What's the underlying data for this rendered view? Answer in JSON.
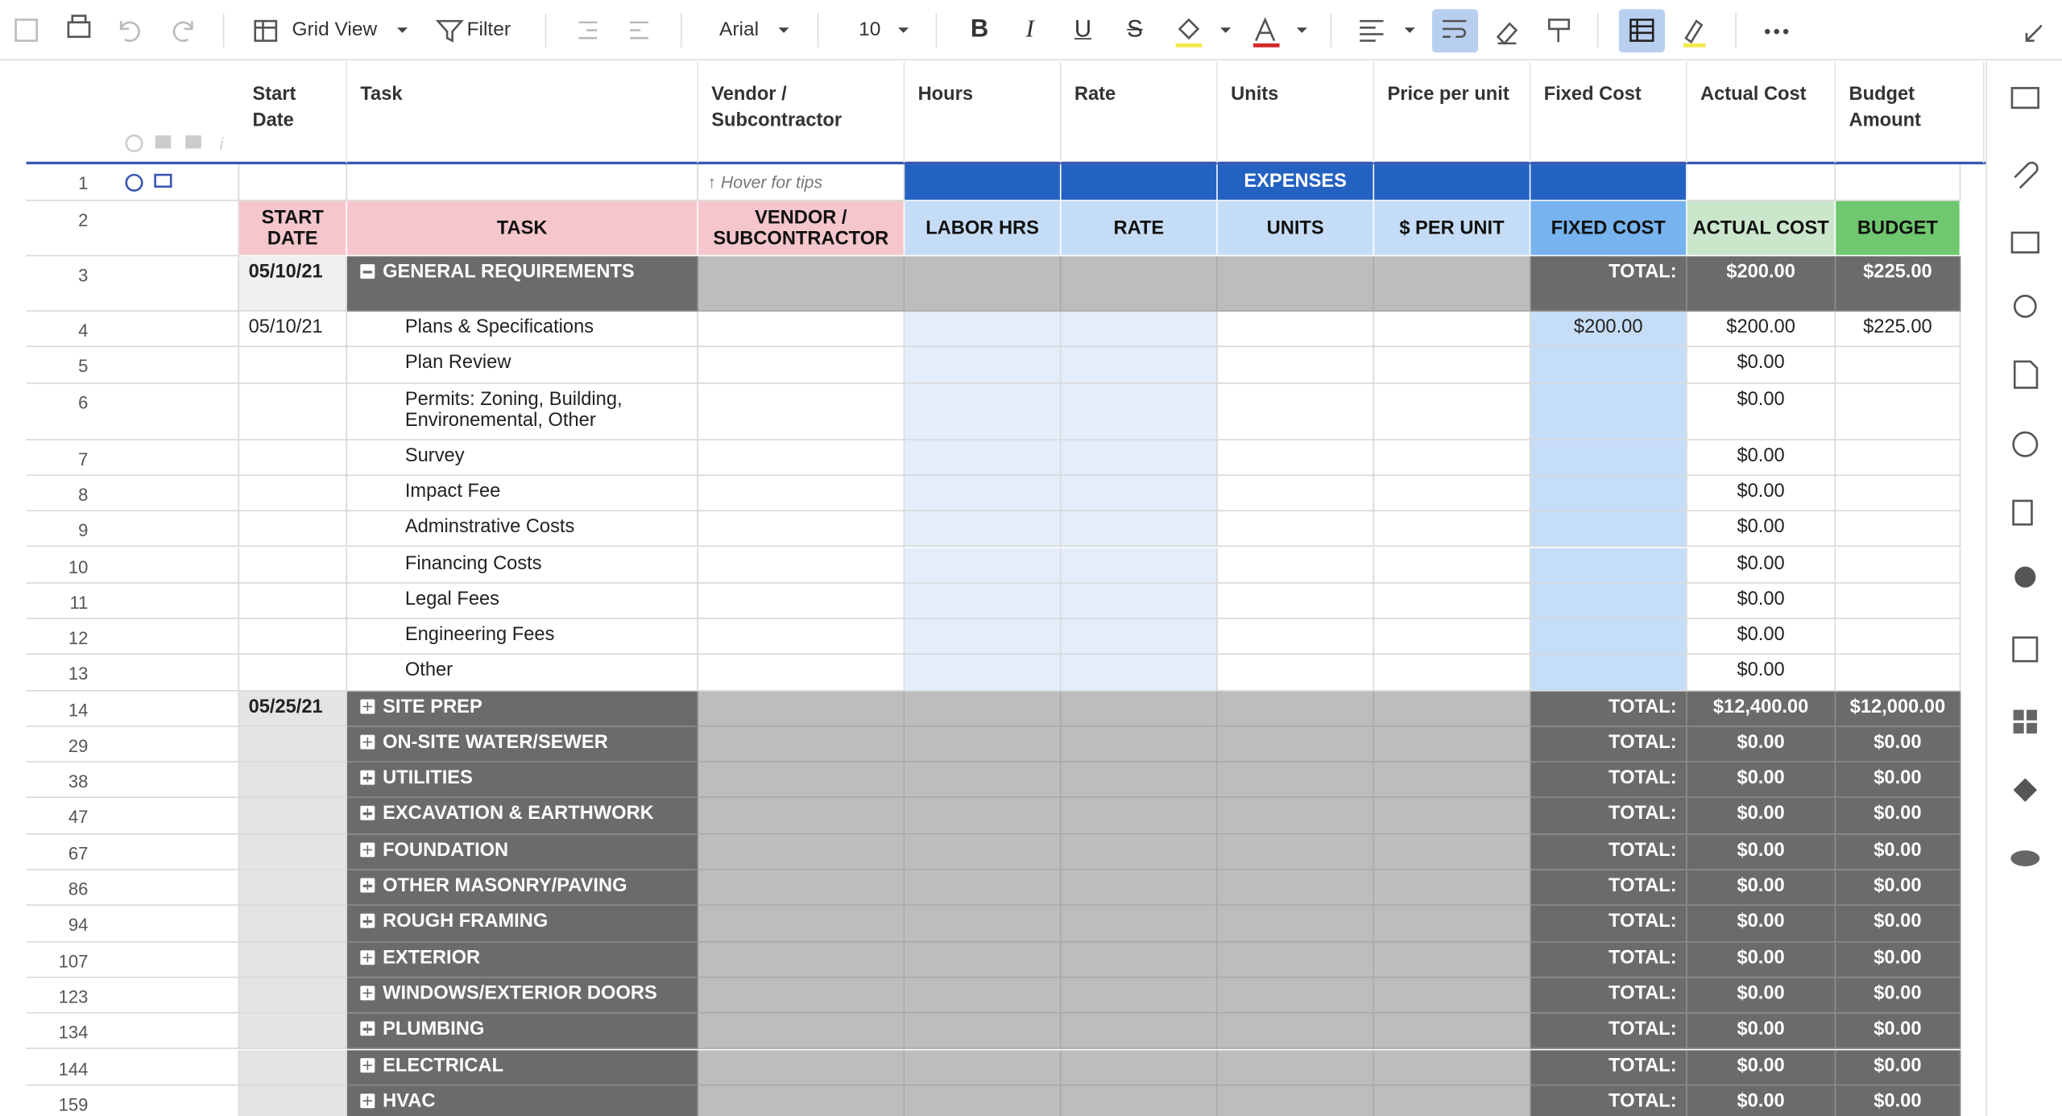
{
  "toolbar": {
    "view": "Grid View",
    "filter": "Filter",
    "font": "Arial",
    "size": "10",
    "format": [
      "B",
      "I",
      "U",
      "S"
    ]
  },
  "columns": [
    "Start Date",
    "Task",
    "Vendor / Subcontractor",
    "Hours",
    "Rate",
    "Units",
    "Price per unit",
    "Fixed Cost",
    "Actual Cost",
    "Budget Amount"
  ],
  "rows": {
    "hint": {
      "num": 1,
      "hint": "↑ Hover for tips",
      "label": "EXPENSES"
    },
    "labels": {
      "num": 2,
      "cells": [
        "START DATE",
        "TASK",
        "VENDOR / SUBCONTRACTOR",
        "LABOR HRS",
        "RATE",
        "UNITS",
        "$ PER UNIT",
        "FIXED COST",
        "ACTUAL COST",
        "BUDGET"
      ]
    },
    "general": {
      "num": 3,
      "date": "05/10/21",
      "task": "GENERAL REQUIREMENTS",
      "total_label": "TOTAL:",
      "actual": "$200.00",
      "budget": "$225.00"
    },
    "items": [
      {
        "num": 4,
        "date": "05/10/21",
        "task": "Plans & Specifications",
        "fixed": "$200.00",
        "actual": "$200.00",
        "budget": "$225.00"
      },
      {
        "num": 5,
        "task": "Plan Review",
        "actual": "$0.00"
      },
      {
        "num": 6,
        "task": "Permits: Zoning, Building, Environemental, Other",
        "actual": "$0.00"
      },
      {
        "num": 7,
        "task": "Survey",
        "actual": "$0.00"
      },
      {
        "num": 8,
        "task": "Impact Fee",
        "actual": "$0.00"
      },
      {
        "num": 9,
        "task": "Adminstrative Costs",
        "actual": "$0.00"
      },
      {
        "num": 10,
        "task": "Financing Costs",
        "actual": "$0.00"
      },
      {
        "num": 11,
        "task": "Legal Fees",
        "actual": "$0.00"
      },
      {
        "num": 12,
        "task": "Engineering Fees",
        "actual": "$0.00"
      },
      {
        "num": 13,
        "task": "Other",
        "actual": "$0.00"
      }
    ],
    "groups": [
      {
        "num": 14,
        "date": "05/25/21",
        "task": "SITE PREP",
        "total_label": "TOTAL:",
        "actual": "$12,400.00",
        "budget": "$12,000.00"
      },
      {
        "num": 29,
        "task": "ON-SITE WATER/SEWER",
        "total_label": "TOTAL:",
        "actual": "$0.00",
        "budget": "$0.00"
      },
      {
        "num": 38,
        "task": "UTILITIES",
        "total_label": "TOTAL:",
        "actual": "$0.00",
        "budget": "$0.00"
      },
      {
        "num": 47,
        "task": "EXCAVATION & EARTHWORK",
        "total_label": "TOTAL:",
        "actual": "$0.00",
        "budget": "$0.00"
      },
      {
        "num": 67,
        "task": "FOUNDATION",
        "total_label": "TOTAL:",
        "actual": "$0.00",
        "budget": "$0.00"
      },
      {
        "num": 86,
        "task": "OTHER MASONRY/PAVING",
        "total_label": "TOTAL:",
        "actual": "$0.00",
        "budget": "$0.00"
      },
      {
        "num": 94,
        "task": "ROUGH FRAMING",
        "total_label": "TOTAL:",
        "actual": "$0.00",
        "budget": "$0.00"
      },
      {
        "num": 107,
        "task": "EXTERIOR",
        "total_label": "TOTAL:",
        "actual": "$0.00",
        "budget": "$0.00"
      },
      {
        "num": 123,
        "task": "WINDOWS/EXTERIOR DOORS",
        "total_label": "TOTAL:",
        "actual": "$0.00",
        "budget": "$0.00"
      },
      {
        "num": 134,
        "task": "PLUMBING",
        "total_label": "TOTAL:",
        "actual": "$0.00",
        "budget": "$0.00"
      },
      {
        "num": 144,
        "task": "ELECTRICAL",
        "total_label": "TOTAL:",
        "actual": "$0.00",
        "budget": "$0.00"
      },
      {
        "num": 159,
        "task": "HVAC",
        "total_label": "TOTAL:",
        "actual": "$0.00",
        "budget": "$0.00"
      }
    ]
  }
}
